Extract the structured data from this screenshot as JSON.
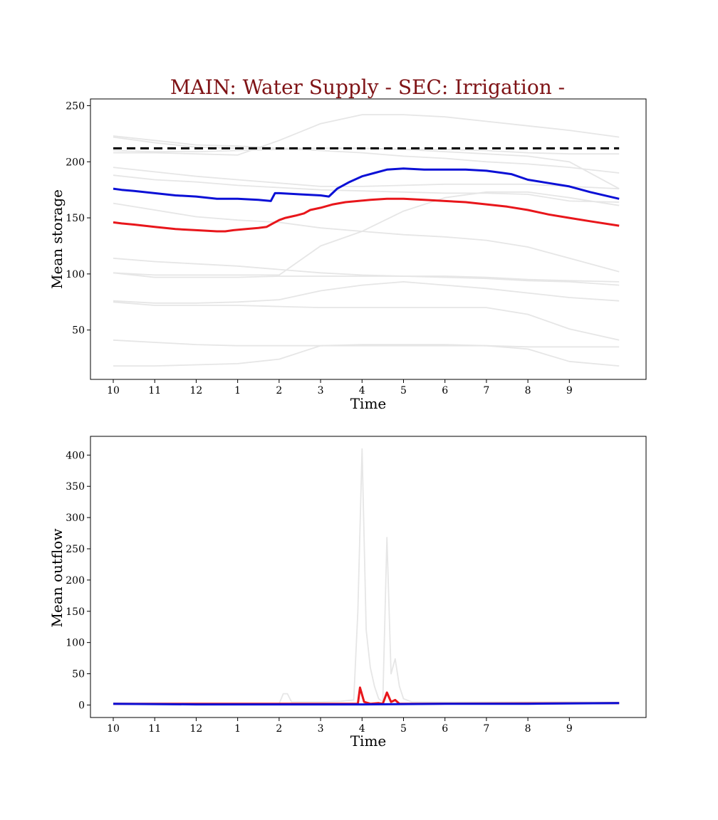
{
  "title": "MAIN: Water Supply - SEC: Irrigation -",
  "colors": {
    "title": "#7f1316",
    "red_series": "#e8161b",
    "blue_series": "#0b10d6",
    "background_series": "#e6e6e6",
    "reference": "#000000"
  },
  "chart_data": [
    {
      "type": "line",
      "xlabel": "Time",
      "ylabel": "Mean storage",
      "grid": false,
      "xlim": [
        -0.55,
        12.85
      ],
      "ylim": [
        6,
        256
      ],
      "x_ticks": [
        0,
        1,
        2,
        3,
        4,
        5,
        6,
        7,
        8,
        9,
        10,
        11
      ],
      "x_tick_labels": [
        "10",
        "11",
        "12",
        "1",
        "2",
        "3",
        "4",
        "5",
        "6",
        "7",
        "8",
        "9"
      ],
      "y_ticks": [
        50,
        100,
        150,
        200,
        250
      ],
      "y_tick_labels": [
        "50",
        "100",
        "150",
        "200",
        "250"
      ],
      "reference_line": {
        "y": 212,
        "style": "dashed"
      },
      "series": [
        {
          "role": "red",
          "x": [
            0,
            0.2,
            0.5,
            1,
            1.5,
            2,
            2.5,
            2.7,
            2.9,
            3.2,
            3.5,
            3.7,
            3.85,
            4,
            4.15,
            4.4,
            4.6,
            4.75,
            5,
            5.3,
            5.6,
            5.9,
            6.2,
            6.6,
            7,
            7.5,
            8,
            8.5,
            9,
            9.5,
            10,
            10.5,
            11,
            11.5,
            12.2
          ],
          "y": [
            146,
            145,
            144,
            142,
            140,
            139,
            138,
            138,
            139,
            140,
            141,
            142,
            145,
            148,
            150,
            152,
            154,
            157,
            159,
            162,
            164,
            165,
            166,
            167,
            167,
            166,
            165,
            164,
            162,
            160,
            157,
            153,
            150,
            147,
            143
          ]
        },
        {
          "role": "blue",
          "x": [
            0,
            0.2,
            0.5,
            1,
            1.5,
            2,
            2.5,
            3,
            3.5,
            3.8,
            3.9,
            4,
            4.5,
            5,
            5.2,
            5.4,
            5.7,
            6,
            6.3,
            6.6,
            7,
            7.5,
            8,
            8.5,
            9,
            9.4,
            9.6,
            10,
            10.5,
            11,
            11.5,
            12.2
          ],
          "y": [
            176,
            175,
            174,
            172,
            170,
            169,
            167,
            167,
            166,
            165,
            172,
            172,
            171,
            170,
            169,
            176,
            182,
            187,
            190,
            193,
            194,
            193,
            193,
            193,
            192,
            190,
            189,
            184,
            181,
            178,
            173,
            167
          ]
        },
        {
          "role": "background",
          "x": [
            0,
            1,
            2,
            3,
            4,
            5,
            6,
            7,
            8,
            9,
            10,
            11,
            12.2
          ],
          "y": [
            18,
            18,
            19,
            20,
            24,
            36,
            37,
            37,
            37,
            36,
            33,
            22,
            18
          ]
        },
        {
          "role": "background",
          "x": [
            0,
            1,
            2,
            3,
            4,
            5,
            6,
            7,
            8,
            9,
            10,
            11,
            12.2
          ],
          "y": [
            41,
            39,
            37,
            36,
            36,
            36,
            36,
            36,
            36,
            36,
            35,
            35,
            35
          ]
        },
        {
          "role": "background",
          "x": [
            0,
            1,
            2,
            3,
            4,
            5,
            6,
            7,
            8,
            9,
            10,
            11,
            12.2
          ],
          "y": [
            75,
            72,
            72,
            72,
            71,
            70,
            70,
            70,
            70,
            70,
            64,
            51,
            41
          ]
        },
        {
          "role": "background",
          "x": [
            0,
            1,
            2,
            3,
            4,
            5,
            6,
            7,
            8,
            9,
            10,
            11,
            12.2
          ],
          "y": [
            101,
            97,
            97,
            97,
            98,
            98,
            98,
            98,
            97,
            96,
            94,
            93,
            90
          ]
        },
        {
          "role": "background",
          "x": [
            0,
            1,
            2,
            3,
            4,
            5,
            6,
            7,
            8,
            9,
            10,
            11,
            12.2
          ],
          "y": [
            114,
            111,
            109,
            107,
            104,
            101,
            99,
            98,
            98,
            97,
            95,
            94,
            93
          ]
        },
        {
          "role": "background",
          "x": [
            0,
            1,
            2,
            3,
            4,
            5,
            6,
            7,
            8,
            9,
            10,
            11,
            12.2
          ],
          "y": [
            76,
            74,
            74,
            75,
            77,
            85,
            90,
            93,
            90,
            87,
            83,
            79,
            76
          ]
        },
        {
          "role": "background",
          "x": [
            0,
            1,
            2,
            3,
            4,
            5,
            6,
            7,
            8,
            9,
            10,
            11,
            12.2
          ],
          "y": [
            163,
            157,
            151,
            148,
            146,
            141,
            138,
            135,
            133,
            130,
            124,
            114,
            102
          ]
        },
        {
          "role": "background",
          "x": [
            0,
            1,
            2,
            3,
            4,
            5,
            6,
            7,
            8,
            9,
            10,
            11,
            12.2
          ],
          "y": [
            188,
            184,
            182,
            179,
            177,
            175,
            174,
            173,
            172,
            172,
            171,
            165,
            164
          ]
        },
        {
          "role": "background",
          "x": [
            0,
            1,
            2,
            3,
            4,
            5,
            6,
            7,
            8,
            9,
            10,
            11,
            12.2
          ],
          "y": [
            195,
            191,
            187,
            184,
            181,
            178,
            178,
            179,
            180,
            180,
            180,
            178,
            176
          ]
        },
        {
          "role": "background",
          "x": [
            0,
            1,
            2,
            3,
            4,
            5,
            6,
            7,
            8,
            9,
            10,
            11,
            12.2
          ],
          "y": [
            222,
            217,
            213,
            212,
            212,
            212,
            212,
            211,
            211,
            210,
            208,
            207,
            207
          ]
        },
        {
          "role": "background",
          "x": [
            0,
            1,
            2,
            3,
            4,
            5,
            6,
            7,
            8,
            9,
            10,
            11,
            12.2
          ],
          "y": [
            223,
            219,
            215,
            214,
            212,
            210,
            208,
            205,
            203,
            200,
            198,
            195,
            190
          ]
        },
        {
          "role": "background",
          "x": [
            0,
            1,
            2,
            3,
            4,
            5,
            6,
            7,
            8,
            9,
            10,
            11,
            12.2
          ],
          "y": [
            208,
            208,
            207,
            206,
            219,
            234,
            242,
            242,
            240,
            236,
            232,
            228,
            222
          ]
        },
        {
          "role": "background",
          "x": [
            0,
            1,
            2,
            3,
            4,
            5,
            6,
            7,
            8,
            9,
            10,
            11,
            12.2
          ],
          "y": [
            101,
            99,
            99,
            99,
            99,
            125,
            138,
            156,
            168,
            173,
            173,
            168,
            161
          ]
        },
        {
          "role": "background",
          "x": [
            0,
            1,
            2,
            3,
            4,
            5,
            6,
            7,
            8,
            9,
            10,
            11,
            12.2
          ],
          "y": [
            210,
            209,
            209,
            210,
            211,
            212,
            212,
            211,
            209,
            207,
            205,
            200,
            176
          ]
        }
      ]
    },
    {
      "type": "line",
      "xlabel": "Time",
      "ylabel": "Mean outflow",
      "grid": false,
      "xlim": [
        -0.55,
        12.85
      ],
      "ylim": [
        -20,
        430
      ],
      "x_ticks": [
        0,
        1,
        2,
        3,
        4,
        5,
        6,
        7,
        8,
        9,
        10,
        11
      ],
      "x_tick_labels": [
        "10",
        "11",
        "12",
        "1",
        "2",
        "3",
        "4",
        "5",
        "6",
        "7",
        "8",
        "9"
      ],
      "y_ticks": [
        0,
        50,
        100,
        150,
        200,
        250,
        300,
        350,
        400
      ],
      "y_tick_labels": [
        "0",
        "50",
        "100",
        "150",
        "200",
        "250",
        "300",
        "350",
        "400"
      ],
      "series": [
        {
          "role": "background",
          "x": [
            0,
            3,
            4,
            4.1,
            4.2,
            4.3,
            5,
            5.5,
            5.8,
            5.9,
            6,
            6.1,
            6.2,
            6.3,
            6.4,
            6.5,
            6.6,
            6.7,
            6.8,
            6.9,
            7,
            7.2,
            10,
            11,
            12.2
          ],
          "y": [
            2,
            2,
            2,
            18,
            18,
            5,
            5,
            6,
            8,
            150,
            410,
            120,
            60,
            30,
            10,
            5,
            268,
            50,
            74,
            30,
            10,
            5,
            5,
            5,
            4
          ]
        },
        {
          "role": "red",
          "x": [
            0,
            5,
            5.9,
            5.95,
            6.05,
            6.2,
            6.4,
            6.5,
            6.6,
            6.7,
            6.8,
            6.9,
            7,
            12.2
          ],
          "y": [
            2,
            2,
            2,
            28,
            5,
            2,
            3,
            2,
            20,
            5,
            8,
            2,
            2,
            3
          ]
        },
        {
          "role": "blue",
          "x": [
            0,
            2,
            4,
            6,
            8,
            10,
            12.2
          ],
          "y": [
            2,
            1,
            1,
            1,
            2,
            2,
            3
          ]
        }
      ]
    }
  ]
}
